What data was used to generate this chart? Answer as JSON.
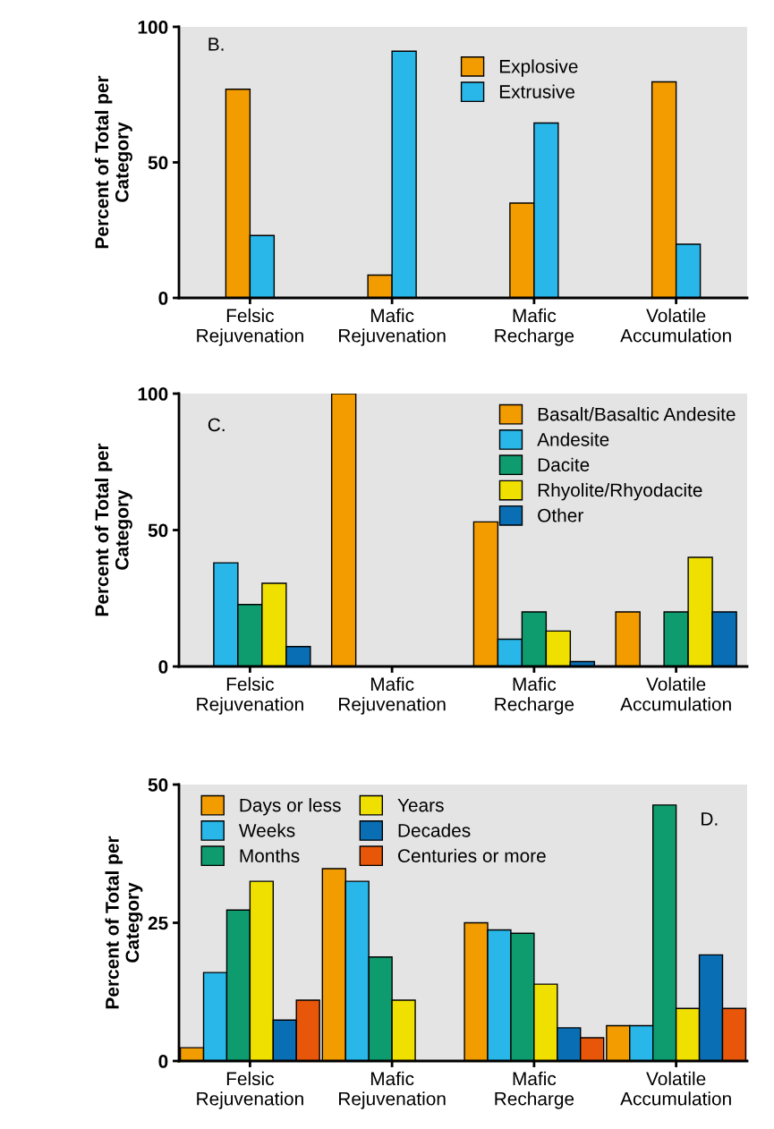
{
  "chart_data": [
    {
      "type": "bar",
      "ylabel": "Percent of Total per\nCategory",
      "annotations": [
        "B."
      ],
      "categories": [
        "Felsic\nRejuvenation",
        "Mafic\nRejuvenation",
        "Mafic\nRecharge",
        "Volatile\nAccumulation"
      ],
      "ylim": [
        0,
        100
      ],
      "yticks": [
        0,
        50,
        100
      ],
      "legend": "top",
      "grid": false,
      "series": [
        {
          "name": "Explosive",
          "color": "#f39c00",
          "values": [
            77,
            8.4,
            35,
            79.7
          ]
        },
        {
          "name": "Extrusive",
          "color": "#29b6e8",
          "values": [
            23,
            91,
            64.5,
            19.8
          ]
        }
      ]
    },
    {
      "type": "bar",
      "ylabel": "Percent of Total per\nCategory",
      "annotations": [
        "C."
      ],
      "categories": [
        "Felsic\nRejuvenation",
        "Mafic\nRejuvenation",
        "Mafic\nRecharge",
        "Volatile\nAccumulation"
      ],
      "ylim": [
        0,
        100
      ],
      "yticks": [
        0,
        50,
        100
      ],
      "legend": "top right",
      "grid": false,
      "series": [
        {
          "name": "Basalt/Basaltic Andesite",
          "color": "#f39c00",
          "values": [
            null,
            100,
            53,
            20
          ]
        },
        {
          "name": "Andesite",
          "color": "#29b6e8",
          "values": [
            38,
            null,
            10,
            null
          ]
        },
        {
          "name": "Dacite",
          "color": "#0e9c6e",
          "values": [
            22.7,
            null,
            20,
            20
          ]
        },
        {
          "name": "Rhyolite/Rhyodacite",
          "color": "#f0e000",
          "values": [
            30.5,
            null,
            13,
            40
          ]
        },
        {
          "name": "Other",
          "color": "#0a6eb4",
          "values": [
            7.3,
            null,
            1.8,
            20
          ]
        }
      ]
    },
    {
      "type": "bar",
      "ylabel": "Percent of Total per\nCategory",
      "annotations": [
        "D."
      ],
      "categories": [
        "Felsic\nRejuvenation",
        "Mafic\nRejuvenation",
        "Mafic\nRecharge",
        "Volatile\nAccumulation"
      ],
      "ylim": [
        0,
        50
      ],
      "yticks": [
        0,
        25,
        50
      ],
      "legend": "top left",
      "grid": false,
      "series": [
        {
          "name": "Days or less",
          "color": "#f39c00",
          "values": [
            2.4,
            34.8,
            25,
            6.4
          ]
        },
        {
          "name": "Weeks",
          "color": "#29b6e8",
          "values": [
            16,
            32.5,
            23.7,
            6.4
          ]
        },
        {
          "name": "Months",
          "color": "#0e9c6e",
          "values": [
            27.3,
            18.8,
            23.1,
            46.3
          ]
        },
        {
          "name": "Years",
          "color": "#f0e000",
          "values": [
            32.5,
            11,
            13.9,
            9.5
          ]
        },
        {
          "name": "Decades",
          "color": "#0a6eb4",
          "values": [
            7.4,
            null,
            6,
            19.2
          ]
        },
        {
          "name": "Centuries or more",
          "color": "#e8560a",
          "values": [
            11,
            null,
            4.2,
            9.5
          ]
        }
      ]
    }
  ]
}
